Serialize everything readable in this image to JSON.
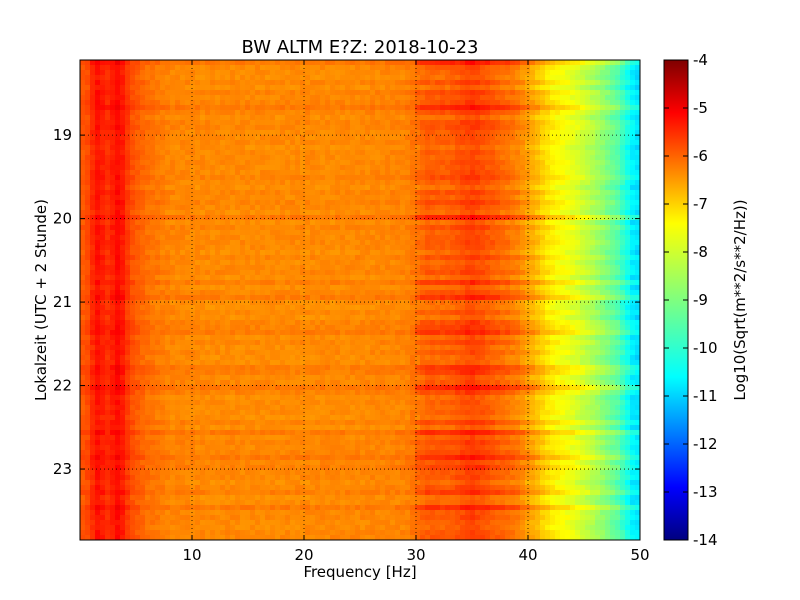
{
  "chart_data": {
    "type": "heatmap",
    "title": "BW ALTM E?Z: 2018-10-23",
    "xlabel": "Frequency [Hz]",
    "ylabel": "Lokalzeit (UTC + 2 Stunde)",
    "xlim": [
      0,
      50
    ],
    "ylim": [
      23.85,
      18.1
    ],
    "x_ticks": [
      "10",
      "20",
      "30",
      "40",
      "50"
    ],
    "y_ticks": [
      "19",
      "20",
      "21",
      "22",
      "23"
    ],
    "grid": true,
    "grid_style": "dotted",
    "colormap": "jet",
    "colorbar": {
      "label": "Log10(Sqrt(m**2/s**2/Hz))",
      "range": [
        -14,
        -4
      ],
      "ticks": [
        "-4",
        "-5",
        "-6",
        "-7",
        "-8",
        "-9",
        "-10",
        "-11",
        "-12",
        "-13",
        "-14"
      ]
    },
    "spectrum_profile": [
      {
        "freq": 0.5,
        "value": -6.1
      },
      {
        "freq": 1.5,
        "value": -5.4
      },
      {
        "freq": 2.5,
        "value": -5.7
      },
      {
        "freq": 3.5,
        "value": -5.3
      },
      {
        "freq": 4.5,
        "value": -6.0
      },
      {
        "freq": 6,
        "value": -6.35
      },
      {
        "freq": 8,
        "value": -6.55
      },
      {
        "freq": 12,
        "value": -6.6
      },
      {
        "freq": 18,
        "value": -6.6
      },
      {
        "freq": 24,
        "value": -6.6
      },
      {
        "freq": 29,
        "value": -6.55
      },
      {
        "freq": 31,
        "value": -6.2
      },
      {
        "freq": 33,
        "value": -6.2
      },
      {
        "freq": 35,
        "value": -5.9
      },
      {
        "freq": 37,
        "value": -6.2
      },
      {
        "freq": 39,
        "value": -6.5
      },
      {
        "freq": 40.5,
        "value": -7.0
      },
      {
        "freq": 42,
        "value": -7.6
      },
      {
        "freq": 44,
        "value": -8.0
      },
      {
        "freq": 46,
        "value": -8.6
      },
      {
        "freq": 48,
        "value": -9.4
      },
      {
        "freq": 49.5,
        "value": -10.5
      }
    ]
  }
}
